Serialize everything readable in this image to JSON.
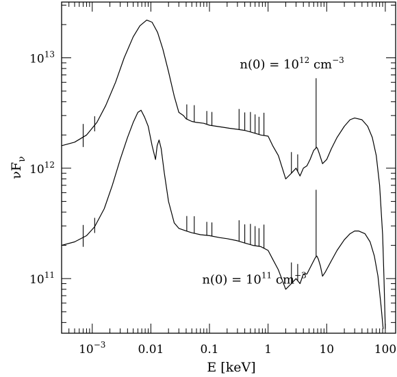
{
  "chart_data": {
    "type": "line",
    "title": "",
    "xlabel": "E [keV]",
    "ylabel": "νF_ν",
    "ylabel_parts": {
      "main": "νF",
      "sub": "ν"
    },
    "xscale": "log",
    "yscale": "log",
    "xlim": [
      0.0003,
      150
    ],
    "ylim": [
      32000000000.0,
      32000000000000.0
    ],
    "grid": false,
    "legend": "none",
    "x_ticks": [
      {
        "value": 0.001,
        "base": "10",
        "exp": "−3"
      },
      {
        "value": 0.01,
        "label": "0.01"
      },
      {
        "value": 0.1,
        "label": "0.1"
      },
      {
        "value": 1,
        "label": "1"
      },
      {
        "value": 10,
        "label": "10"
      },
      {
        "value": 100,
        "label": "100"
      }
    ],
    "y_ticks": [
      {
        "value": 100000000000.0,
        "base": "10",
        "exp": "11"
      },
      {
        "value": 1000000000000.0,
        "base": "10",
        "exp": "12"
      },
      {
        "value": 10000000000000.0,
        "base": "10",
        "exp": "13"
      }
    ],
    "annotations": [
      {
        "id": "upper",
        "base": "n(0)  =  10",
        "exp": "12",
        "unit": " cm",
        "unit_exp": "−3",
        "x": 0.33,
        "y": 8000000000000.0
      },
      {
        "id": "lower",
        "base": "n(0)  =  10",
        "exp": "11",
        "unit": " cm",
        "unit_exp": "−3",
        "x": 0.075,
        "y": 90000000000.0
      }
    ],
    "series": [
      {
        "id": "upper",
        "color": "#000000",
        "points": [
          [
            0.0003,
            1600000000000.0
          ],
          [
            0.0005,
            1720000000000.0
          ],
          [
            0.0008,
            2000000000000.0
          ],
          [
            0.0012,
            2600000000000.0
          ],
          [
            0.0017,
            3700000000000.0
          ],
          [
            0.0025,
            6000000000000.0
          ],
          [
            0.0035,
            10000000000000.0
          ],
          [
            0.005,
            15500000000000.0
          ],
          [
            0.0065,
            19500000000000.0
          ],
          [
            0.0085,
            22000000000000.0
          ],
          [
            0.0105,
            21000000000000.0
          ],
          [
            0.013,
            17000000000000.0
          ],
          [
            0.016,
            12000000000000.0
          ],
          [
            0.02,
            7500000000000.0
          ],
          [
            0.025,
            4500000000000.0
          ],
          [
            0.03,
            3200000000000.0
          ],
          [
            0.036,
            3000000000000.0
          ],
          [
            0.04,
            2800000000000.0
          ],
          [
            0.05,
            2650000000000.0
          ],
          [
            0.06,
            2600000000000.0
          ],
          [
            0.08,
            2550000000000.0
          ],
          [
            0.1,
            2450000000000.0
          ],
          [
            0.13,
            2400000000000.0
          ],
          [
            0.17,
            2350000000000.0
          ],
          [
            0.22,
            2300000000000.0
          ],
          [
            0.3,
            2250000000000.0
          ],
          [
            0.4,
            2200000000000.0
          ],
          [
            0.55,
            2100000000000.0
          ],
          [
            0.75,
            2000000000000.0
          ],
          [
            1.0,
            1950000000000.0
          ],
          [
            1.2,
            1600000000000.0
          ],
          [
            1.5,
            1300000000000.0
          ],
          [
            2.0,
            800000000000.0
          ],
          [
            2.5,
            900000000000.0
          ],
          [
            3.0,
            1000000000000.0
          ],
          [
            3.5,
            850000000000.0
          ],
          [
            4.0,
            1000000000000.0
          ],
          [
            4.6,
            1050000000000.0
          ],
          [
            5.2,
            1200000000000.0
          ],
          [
            6.0,
            1450000000000.0
          ],
          [
            6.4,
            1500000000000.0
          ],
          [
            6.7,
            1550000000000.0
          ],
          [
            7.0,
            1500000000000.0
          ],
          [
            7.5,
            1350000000000.0
          ],
          [
            8.5,
            1100000000000.0
          ],
          [
            10.0,
            1200000000000.0
          ],
          [
            12.0,
            1500000000000.0
          ],
          [
            15.0,
            1900000000000.0
          ],
          [
            20.0,
            2400000000000.0
          ],
          [
            25.0,
            2750000000000.0
          ],
          [
            30.0,
            2850000000000.0
          ],
          [
            40.0,
            2750000000000.0
          ],
          [
            50.0,
            2400000000000.0
          ],
          [
            60.0,
            1900000000000.0
          ],
          [
            70.0,
            1300000000000.0
          ],
          [
            80.0,
            700000000000.0
          ],
          [
            90.0,
            250000000000.0
          ],
          [
            95.0,
            100000000000.0
          ],
          [
            100.0,
            35000000000.0
          ]
        ],
        "lines": [
          [
            0.041,
            1000000000000.0
          ],
          [
            0.055,
            1100000000000.0
          ],
          [
            0.09,
            800000000000.0
          ],
          [
            0.11,
            800000000000.0
          ],
          [
            0.32,
            1200000000000.0
          ],
          [
            0.4,
            1000000000000.0
          ],
          [
            0.5,
            1100000000000.0
          ],
          [
            0.6,
            1000000000000.0
          ],
          [
            0.7,
            900000000000.0
          ],
          [
            0.85,
            1200000000000.0
          ],
          [
            2.5,
            500000000000.0
          ],
          [
            3.2,
            400000000000.0
          ],
          [
            6.6,
            5000000000000.0
          ]
        ],
        "edges": [
          [
            0.0007,
            600000000000.0
          ],
          [
            0.0011,
            500000000000.0
          ]
        ]
      },
      {
        "id": "lower",
        "color": "#000000",
        "points": [
          [
            0.0003,
            200000000000.0
          ],
          [
            0.0005,
            215000000000.0
          ],
          [
            0.0008,
            245000000000.0
          ],
          [
            0.0011,
            295000000000.0
          ],
          [
            0.0016,
            430000000000.0
          ],
          [
            0.0022,
            700000000000.0
          ],
          [
            0.003,
            1200000000000.0
          ],
          [
            0.004,
            1900000000000.0
          ],
          [
            0.005,
            2600000000000.0
          ],
          [
            0.006,
            3200000000000.0
          ],
          [
            0.0068,
            3350000000000.0
          ],
          [
            0.0078,
            2900000000000.0
          ],
          [
            0.009,
            2400000000000.0
          ],
          [
            0.0105,
            1600000000000.0
          ],
          [
            0.012,
            1200000000000.0
          ],
          [
            0.0128,
            1600000000000.0
          ],
          [
            0.0138,
            1800000000000.0
          ],
          [
            0.015,
            1500000000000.0
          ],
          [
            0.017,
            900000000000.0
          ],
          [
            0.02,
            500000000000.0
          ],
          [
            0.025,
            320000000000.0
          ],
          [
            0.03,
            285000000000.0
          ],
          [
            0.04,
            270000000000.0
          ],
          [
            0.05,
            260000000000.0
          ],
          [
            0.07,
            250000000000.0
          ],
          [
            0.1,
            245000000000.0
          ],
          [
            0.15,
            235000000000.0
          ],
          [
            0.2,
            230000000000.0
          ],
          [
            0.3,
            220000000000.0
          ],
          [
            0.4,
            210000000000.0
          ],
          [
            0.55,
            200000000000.0
          ],
          [
            0.75,
            195000000000.0
          ],
          [
            1.0,
            180000000000.0
          ],
          [
            1.2,
            150000000000.0
          ],
          [
            1.5,
            120000000000.0
          ],
          [
            2.0,
            80000000000.0
          ],
          [
            2.5,
            90000000000.0
          ],
          [
            3.0,
            100000000000.0
          ],
          [
            3.5,
            90000000000.0
          ],
          [
            4.0,
            110000000000.0
          ],
          [
            4.6,
            110000000000.0
          ],
          [
            5.2,
            125000000000.0
          ],
          [
            6.0,
            145000000000.0
          ],
          [
            6.4,
            155000000000.0
          ],
          [
            6.8,
            160000000000.0
          ],
          [
            7.2,
            150000000000.0
          ],
          [
            7.8,
            130000000000.0
          ],
          [
            8.5,
            105000000000.0
          ],
          [
            9.5,
            115000000000.0
          ],
          [
            12.0,
            145000000000.0
          ],
          [
            15.0,
            180000000000.0
          ],
          [
            20.0,
            225000000000.0
          ],
          [
            25.0,
            255000000000.0
          ],
          [
            30.0,
            270000000000.0
          ],
          [
            35.0,
            270000000000.0
          ],
          [
            45.0,
            255000000000.0
          ],
          [
            55.0,
            215000000000.0
          ],
          [
            65.0,
            160000000000.0
          ],
          [
            75.0,
            105000000000.0
          ],
          [
            85.0,
            55000000000.0
          ],
          [
            92.0,
            35000000000.0
          ]
        ],
        "lines": [
          [
            0.041,
            100000000000.0
          ],
          [
            0.055,
            110000000000.0
          ],
          [
            0.09,
            80000000000.0
          ],
          [
            0.11,
            80000000000.0
          ],
          [
            0.32,
            120000000000.0
          ],
          [
            0.4,
            100000000000.0
          ],
          [
            0.5,
            110000000000.0
          ],
          [
            0.6,
            100000000000.0
          ],
          [
            0.7,
            90000000000.0
          ],
          [
            0.85,
            120000000000.0
          ],
          [
            2.5,
            50000000000.0
          ],
          [
            3.2,
            40000000000.0
          ],
          [
            6.6,
            480000000000.0
          ]
        ],
        "edges": [
          [
            0.0007,
            70000000000.0
          ],
          [
            0.0011,
            60000000000.0
          ]
        ]
      }
    ]
  }
}
